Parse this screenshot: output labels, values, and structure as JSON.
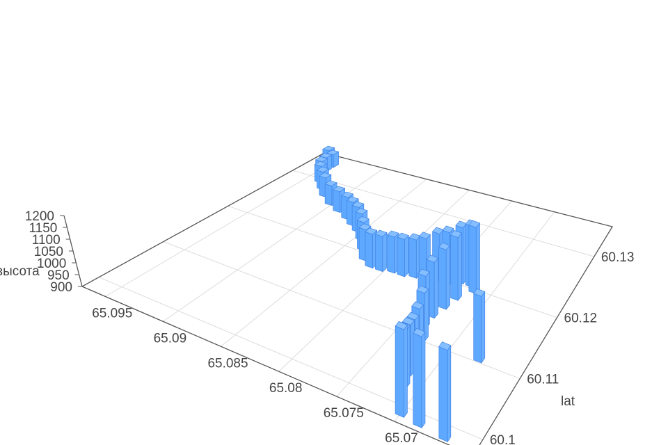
{
  "chart_data": {
    "type": "bar3D",
    "axes": {
      "x": {
        "name": "",
        "range": [
          65.0632,
          65.097
        ],
        "ticks": [
          "65.07",
          "65.075",
          "65.08",
          "65.085",
          "65.09",
          "65.095"
        ]
      },
      "y": {
        "name": "lat",
        "range": [
          60.0974,
          60.1349
        ],
        "ticks": [
          "60.1",
          "60.11",
          "60.12",
          "60.13"
        ]
      },
      "z": {
        "name": "высота",
        "range": [
          900,
          1200
        ],
        "ticks": [
          "900",
          "950",
          "1000",
          "1050",
          "1100",
          "1150",
          "1200"
        ]
      }
    },
    "grid": true,
    "bar_color": "#5ea8ff",
    "points": [
      [
        65.09565,
        60.13378,
        960
      ],
      [
        65.09463,
        60.13303,
        965
      ],
      [
        65.09463,
        60.1319,
        970
      ],
      [
        65.0943,
        60.13078,
        975
      ],
      [
        65.09362,
        60.12965,
        980
      ],
      [
        65.09261,
        60.12853,
        985
      ],
      [
        65.09159,
        60.1274,
        990
      ],
      [
        65.09024,
        60.12628,
        990
      ],
      [
        65.08889,
        60.12553,
        995
      ],
      [
        65.08754,
        60.12478,
        1000
      ],
      [
        65.08652,
        60.12403,
        1005
      ],
      [
        65.08551,
        60.12328,
        1010
      ],
      [
        65.08449,
        60.12215,
        1015
      ],
      [
        65.08348,
        60.12065,
        1020
      ],
      [
        65.08247,
        60.11915,
        1030
      ],
      [
        65.08145,
        60.1184,
        1040
      ],
      [
        65.08044,
        60.1184,
        1045
      ],
      [
        65.07942,
        60.11878,
        1050
      ],
      [
        65.07841,
        60.11878,
        1055
      ],
      [
        65.0774,
        60.11915,
        1060
      ],
      [
        65.07638,
        60.11915,
        1080
      ],
      [
        65.07537,
        60.1199,
        1100
      ],
      [
        65.07435,
        60.1199,
        1120
      ],
      [
        65.07334,
        60.12065,
        1140
      ],
      [
        65.07233,
        60.12065,
        1160
      ],
      [
        65.07165,
        60.1199,
        1180
      ],
      [
        65.07266,
        60.11803,
        1160
      ],
      [
        65.073,
        60.11615,
        1140
      ],
      [
        65.07334,
        60.11428,
        1120
      ],
      [
        65.07334,
        60.1124,
        1100
      ],
      [
        65.07266,
        60.11053,
        1080
      ],
      [
        65.07233,
        60.10865,
        1060
      ],
      [
        65.07199,
        60.10678,
        1060
      ],
      [
        65.07165,
        60.1049,
        1080
      ],
      [
        65.07131,
        60.10303,
        1100
      ],
      [
        65.06996,
        60.0989,
        1190
      ],
      [
        65.06827,
        60.09853,
        1200
      ],
      [
        65.0659,
        60.09815,
        1200
      ],
      [
        65.06726,
        60.11053,
        1150
      ]
    ]
  }
}
